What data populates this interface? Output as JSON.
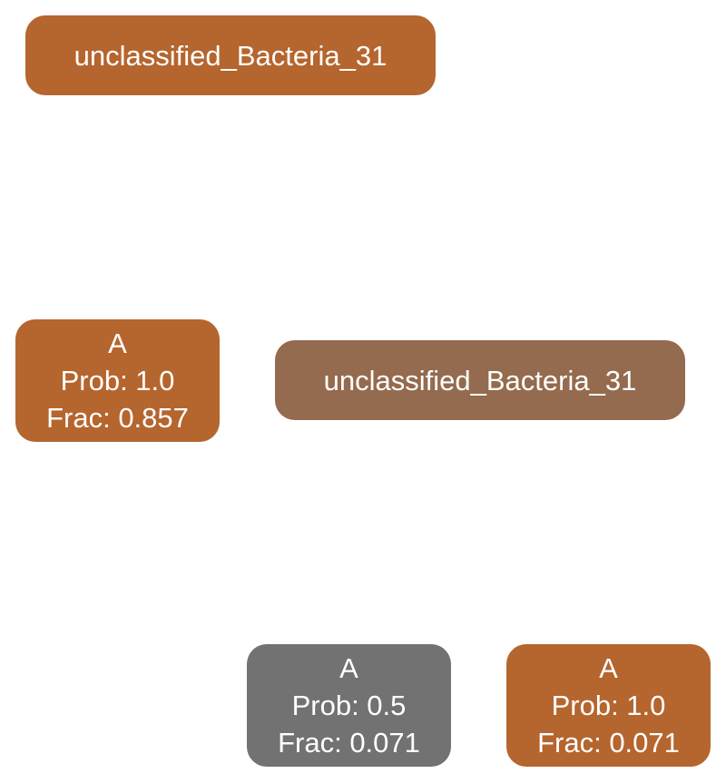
{
  "colors": {
    "orange": "#b5652e",
    "brown": "#946b4e",
    "gray": "#727272",
    "text": "#ffffff"
  },
  "nodes": {
    "root": {
      "label": "unclassified_Bacteria_31",
      "color": "#b5652e"
    },
    "a1": {
      "name": "A",
      "prob": "Prob: 1.0",
      "frac": "Frac: 0.857",
      "color": "#b5652e"
    },
    "child": {
      "label": "unclassified_Bacteria_31",
      "color": "#946b4e"
    },
    "a2": {
      "name": "A",
      "prob": "Prob: 0.5",
      "frac": "Frac: 0.071",
      "color": "#727272"
    },
    "a3": {
      "name": "A",
      "prob": "Prob: 1.0",
      "frac": "Frac: 0.071",
      "color": "#b5652e"
    }
  }
}
